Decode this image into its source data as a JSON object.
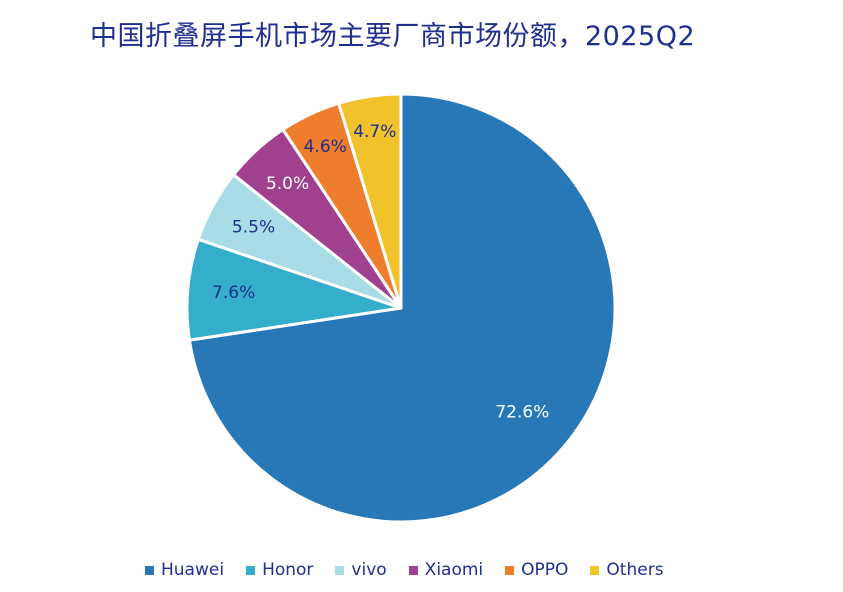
{
  "chart_data": {
    "type": "pie",
    "title": "中国折叠屏手机市场主要厂商市场份额，2025Q2",
    "start_angle": "12 o'clock, clockwise",
    "legend_position": "bottom",
    "slices": [
      {
        "name": "Huawei",
        "value": 72.6,
        "label": "72.6%",
        "color": "#2878b8",
        "label_color": "#ffffff"
      },
      {
        "name": "Honor",
        "value": 7.6,
        "label": "7.6%",
        "color": "#35aecb",
        "label_color": "#1f2f8f"
      },
      {
        "name": "vivo",
        "value": 5.5,
        "label": "5.5%",
        "color": "#a8dce6",
        "label_color": "#1f2f8f"
      },
      {
        "name": "Xiaomi",
        "value": 5.0,
        "label": "5.0%",
        "color": "#a0408f",
        "label_color": "#ffffff"
      },
      {
        "name": "OPPO",
        "value": 4.6,
        "label": "4.6%",
        "color": "#ee7d2e",
        "label_color": "#1f2f8f"
      },
      {
        "name": "Others",
        "value": 4.7,
        "label": "4.7%",
        "color": "#f2c22c",
        "label_color": "#1f2f8f"
      }
    ]
  }
}
